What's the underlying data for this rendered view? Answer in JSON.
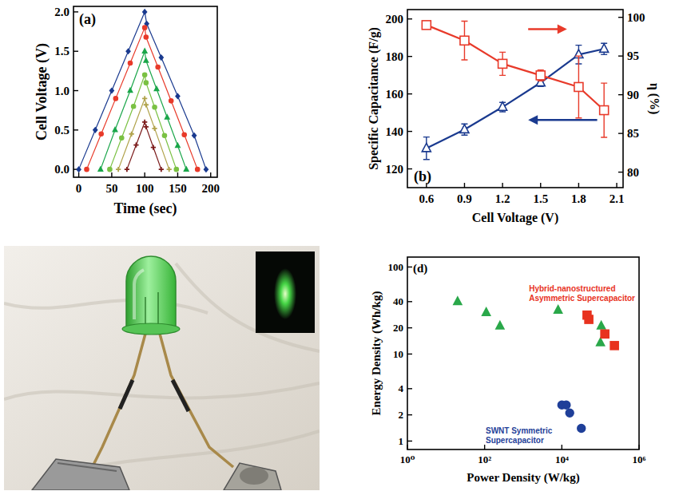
{
  "chart_data": [
    {
      "type": "line",
      "panel_label": "(a)",
      "x_label": "Time (sec)",
      "y_label": "Cell Voltage (V)",
      "xlim": [
        -8,
        210
      ],
      "xticks": [
        0,
        50,
        100,
        150,
        200
      ],
      "ylim": [
        -0.1,
        2.07
      ],
      "yticks": [
        {
          "value": 0,
          "label": "0.0"
        },
        0.5,
        {
          "value": 1,
          "label": "1.0"
        },
        1.5,
        {
          "value": 2,
          "label": "2.0"
        }
      ],
      "series": [
        {
          "color": "#1a3a8f",
          "marker": "diamond",
          "x": [
            0,
            25,
            50,
            75,
            100,
            103,
            125,
            150,
            175,
            193
          ],
          "values": [
            0,
            0.5,
            1.0,
            1.5,
            2.0,
            1.85,
            1.42,
            0.93,
            0.43,
            0
          ]
        },
        {
          "color": "#e83a2a",
          "marker": "circle",
          "x": [
            12,
            34,
            56,
            78,
            100,
            102,
            120,
            140,
            160,
            180
          ],
          "values": [
            0,
            0.45,
            0.9,
            1.35,
            1.8,
            1.68,
            1.3,
            0.87,
            0.44,
            0
          ]
        },
        {
          "color": "#1aa64a",
          "marker": "triangle",
          "x": [
            33,
            55,
            78,
            100,
            102,
            118,
            134,
            150,
            163
          ],
          "values": [
            0,
            0.5,
            1.0,
            1.5,
            1.38,
            1.02,
            0.66,
            0.3,
            0
          ]
        },
        {
          "color": "#7ac143",
          "marker": "circle",
          "x": [
            47,
            65,
            83,
            100,
            102,
            115,
            130,
            148
          ],
          "values": [
            0,
            0.4,
            0.8,
            1.2,
            1.1,
            0.79,
            0.43,
            0
          ]
        },
        {
          "color": "#b0a24a",
          "marker": "plus",
          "x": [
            60,
            80,
            100,
            102,
            115,
            137
          ],
          "values": [
            0,
            0.45,
            0.9,
            0.82,
            0.52,
            0
          ]
        },
        {
          "color": "#7b1a1a",
          "marker": "plus",
          "x": [
            73,
            87,
            100,
            102,
            113,
            125
          ],
          "values": [
            0,
            0.31,
            0.6,
            0.54,
            0.28,
            0
          ]
        }
      ]
    },
    {
      "type": "line",
      "panel_label": "(b)",
      "x_label": "Cell Voltage (V)",
      "y_label": "Specific Capacitance (F/g)",
      "y2_label": "η (%)",
      "xlim": [
        0.45,
        2.15
      ],
      "xticks": [
        0.6,
        0.9,
        1.2,
        1.5,
        1.8,
        2.1
      ],
      "ylim": [
        110,
        205
      ],
      "yticks": [
        120,
        140,
        160,
        180,
        200
      ],
      "y2lim": [
        78,
        101
      ],
      "y2ticks": [
        80,
        85,
        90,
        95,
        100
      ],
      "x": [
        0.6,
        0.9,
        1.2,
        1.5,
        1.8,
        2.0
      ],
      "series": [
        {
          "color": "#1a3a8f",
          "marker": "open-triangle",
          "values": [
            131,
            141,
            153,
            166,
            181,
            184
          ],
          "errors": [
            6,
            3,
            2.5,
            2,
            5,
            3
          ]
        },
        {
          "color": "#e83a2a",
          "marker": "open-square",
          "axis": "y2",
          "values": [
            99,
            97,
            94,
            92.5,
            91,
            88
          ],
          "errors": [
            0.3,
            2.5,
            1.5,
            0.7,
            4,
            3.5
          ]
        }
      ]
    },
    {
      "type": "scatter",
      "panel_label": "(d)",
      "log": true,
      "x_label": "Power Density (W/kg)",
      "y_label": "Energy Density (Wh/kg)",
      "xlim": [
        1,
        1000000
      ],
      "xticks": [
        {
          "value": 1,
          "label": "10⁰"
        },
        {
          "value": 100,
          "label": "10²"
        },
        {
          "value": 10000,
          "label": "10⁴"
        },
        {
          "value": 1000000,
          "label": "10⁶"
        }
      ],
      "ylim": [
        0.8,
        130
      ],
      "yticks": [
        1,
        2,
        4,
        10,
        20,
        40,
        100
      ],
      "series": [
        {
          "color": "#2aa84a",
          "marker": "triangle",
          "x": [
            20,
            110,
            250,
            8000,
            105000,
            100000
          ],
          "values": [
            40,
            30,
            21,
            32,
            21,
            13.5
          ]
        },
        {
          "color": "#e8321e",
          "marker": "square",
          "x": [
            45000,
            50000,
            130000,
            230000
          ],
          "values": [
            28,
            25,
            17,
            12.5
          ]
        },
        {
          "color": "#1f3f99",
          "marker": "circle",
          "x": [
            10000,
            13000,
            16000,
            32000
          ],
          "values": [
            2.6,
            2.6,
            2.1,
            1.4
          ]
        }
      ],
      "annotations": [
        {
          "text": "Hybrid-nanostructured Asymmetric Supercapacitor",
          "color": "#e8321e"
        },
        {
          "text": "SWNT Symmetric Supercapacitor",
          "color": "#1f3f99"
        }
      ]
    }
  ]
}
